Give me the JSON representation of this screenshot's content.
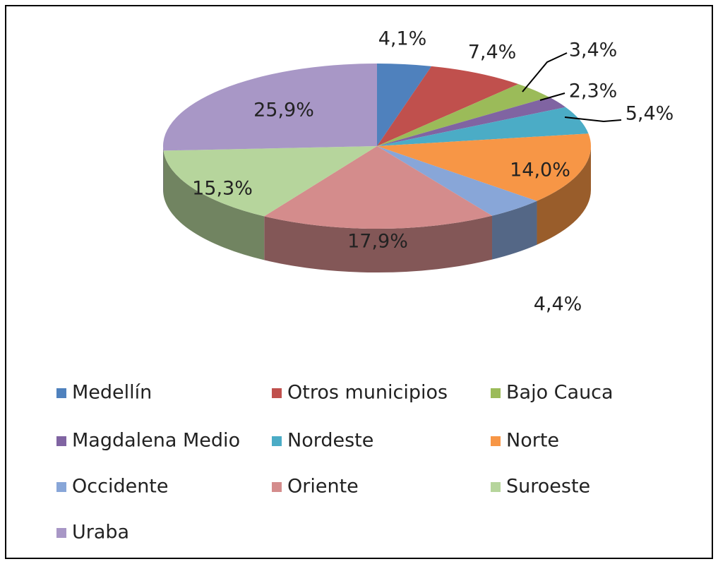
{
  "chart_data": {
    "type": "pie",
    "categories": [
      "Medellín",
      "Otros municipios",
      "Bajo Cauca",
      "Magdalena Medio",
      "Nordeste",
      "Norte",
      "Occidente",
      "Oriente",
      "Suroeste",
      "Uraba"
    ],
    "values": [
      4.1,
      7.4,
      3.4,
      2.3,
      5.4,
      14.0,
      4.4,
      17.9,
      15.3,
      25.9
    ],
    "value_labels": [
      "4,1%",
      "7,4%",
      "3,4%",
      "2,3%",
      "5,4%",
      "14,0%",
      "4,4%",
      "17,9%",
      "15,3%",
      "25,9%"
    ],
    "colors": [
      "#4F81BD",
      "#C0504D",
      "#9BBB59",
      "#8064A2",
      "#4BACC6",
      "#F79646",
      "#88A6D8",
      "#D48C8C",
      "#B6D59C",
      "#A897C6"
    ],
    "legend": "bottom"
  }
}
